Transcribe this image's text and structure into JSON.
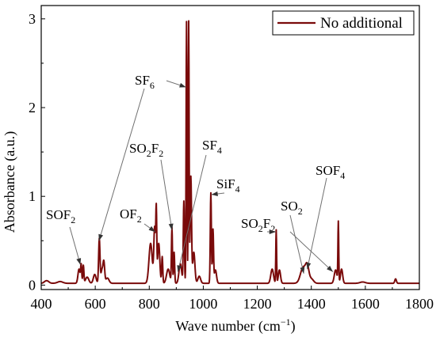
{
  "chart_data": {
    "type": "line",
    "xlabel": "Wave number (cm",
    "xlabel_sup": "−1",
    "xlabel_tail": ")",
    "ylabel": "Absorbance (a.u.)",
    "xlim": [
      400,
      1800
    ],
    "ylim": [
      -0.05,
      3.15
    ],
    "grid": false,
    "legend_position": "top-right",
    "x_ticks": [
      400,
      600,
      800,
      1000,
      1200,
      1400,
      1600,
      1800
    ],
    "y_ticks": [
      0,
      1,
      2,
      3
    ],
    "colors": {
      "series": "#7a0a0a",
      "axis": "#000000"
    },
    "series": [
      {
        "name": "No additional",
        "baseline": 0.02,
        "peaks": [
          [
            420,
            0.03,
            8
          ],
          [
            470,
            0.02,
            10
          ],
          [
            540,
            0.16,
            4
          ],
          [
            548,
            0.2,
            2
          ],
          [
            556,
            0.2,
            2
          ],
          [
            570,
            0.07,
            6
          ],
          [
            598,
            0.1,
            5
          ],
          [
            615,
            0.5,
            2.5
          ],
          [
            625,
            0.15,
            4
          ],
          [
            632,
            0.22,
            3
          ],
          [
            645,
            0.06,
            6
          ],
          [
            805,
            0.45,
            6
          ],
          [
            820,
            0.62,
            3
          ],
          [
            826,
            0.78,
            1.8
          ],
          [
            835,
            0.45,
            4
          ],
          [
            848,
            0.3,
            2
          ],
          [
            870,
            0.16,
            6
          ],
          [
            884,
            0.62,
            1.8
          ],
          [
            892,
            0.35,
            2
          ],
          [
            915,
            0.22,
            5
          ],
          [
            928,
            0.92,
            2
          ],
          [
            938,
            2.95,
            1.6
          ],
          [
            946,
            2.95,
            1.6
          ],
          [
            954,
            1.2,
            2.5
          ],
          [
            965,
            0.35,
            4
          ],
          [
            985,
            0.08,
            5
          ],
          [
            1028,
            1.02,
            2
          ],
          [
            1036,
            0.6,
            2
          ],
          [
            1045,
            0.15,
            4
          ],
          [
            1255,
            0.16,
            5
          ],
          [
            1270,
            0.6,
            1.5
          ],
          [
            1282,
            0.15,
            4
          ],
          [
            1370,
            0.18,
            10
          ],
          [
            1385,
            0.16,
            6
          ],
          [
            1400,
            0.05,
            8
          ],
          [
            1490,
            0.15,
            5
          ],
          [
            1500,
            0.68,
            1.5
          ],
          [
            1512,
            0.16,
            4
          ],
          [
            1590,
            0.015,
            10
          ],
          [
            1712,
            0.05,
            3
          ]
        ]
      }
    ],
    "annotations": [
      {
        "id": "sof2-left",
        "base": "SOF",
        "sub": "2",
        "target_x": 545,
        "target_y": 0.23
      },
      {
        "id": "of2",
        "base": "OF",
        "sub": "2",
        "target_x": 822,
        "target_y": 0.6
      },
      {
        "id": "so2f2-mid",
        "base": "SO",
        "sub": "2",
        "base2": "F",
        "sub2": "2",
        "target_x": 884,
        "target_y": 0.62
      },
      {
        "id": "sf6",
        "base": "SF",
        "sub": "6",
        "target_x": 936,
        "target_y": 2.23,
        "target2_x": 614,
        "target2_y": 0.5
      },
      {
        "id": "sf4",
        "base": "SF",
        "sub": "4",
        "target_x": 906,
        "target_y": 0.15
      },
      {
        "id": "sif4",
        "base": "SiF",
        "sub": "4",
        "target_x": 1030,
        "target_y": 1.02
      },
      {
        "id": "so2f2-right",
        "base": "SO",
        "sub": "2",
        "base2": "F",
        "sub2": "2",
        "target_x": 1268,
        "target_y": 0.6,
        "target2_x": 1480,
        "target2_y": 0.15
      },
      {
        "id": "so2",
        "base": "SO",
        "sub": "2",
        "target_x": 1372,
        "target_y": 0.13
      },
      {
        "id": "sof4",
        "base": "SOF",
        "sub": "4",
        "target_x": 1385,
        "target_y": 0.18
      }
    ]
  }
}
